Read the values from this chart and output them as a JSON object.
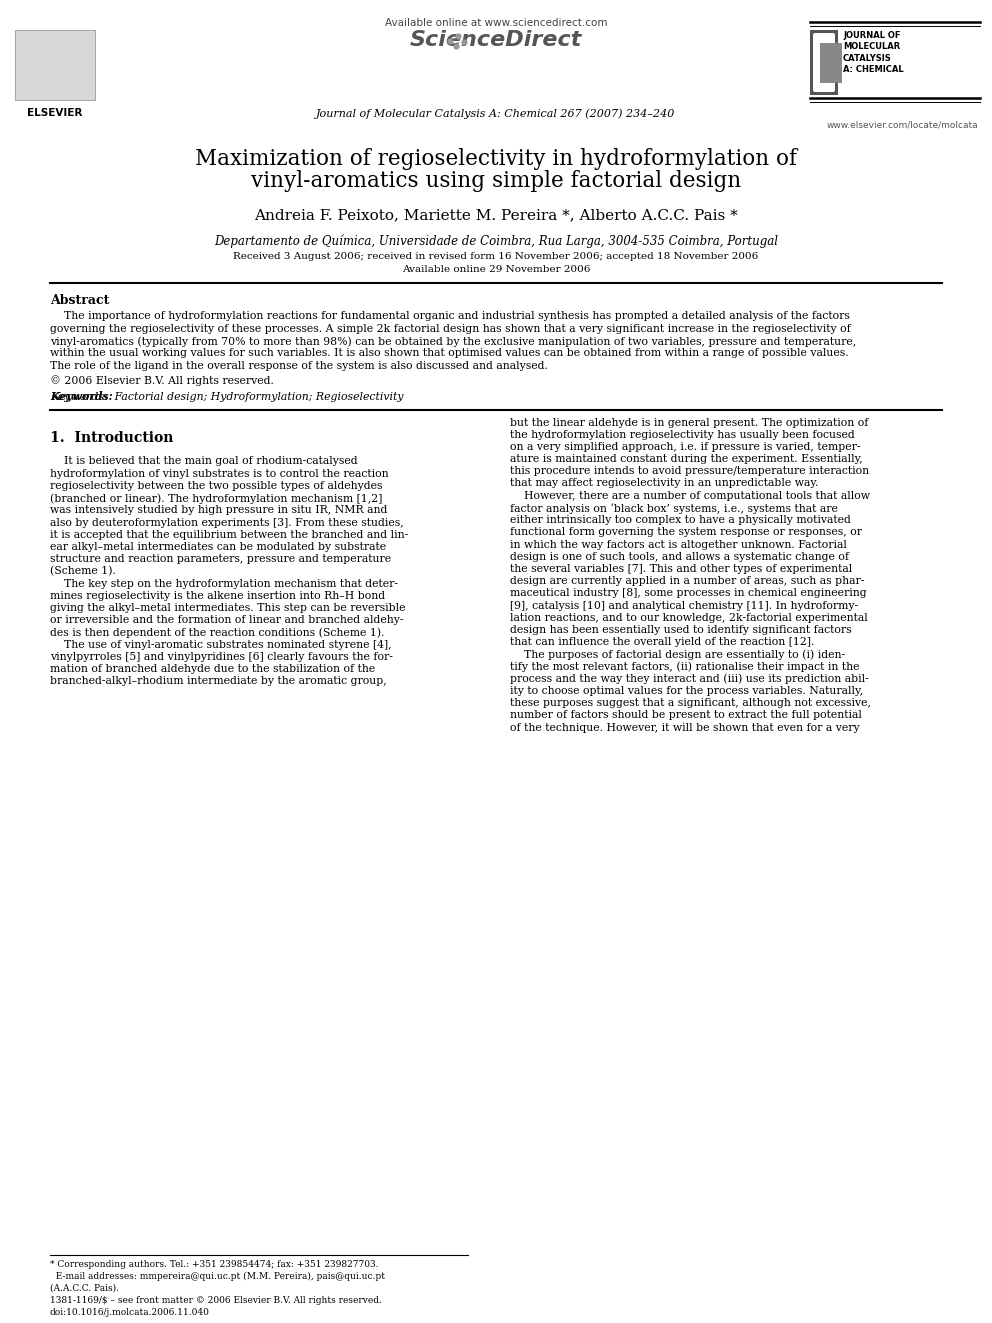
{
  "title_line1": "Maximization of regioselectivity in hydroformylation of",
  "title_line2": "vinyl-aromatics using simple factorial design",
  "authors_plain": "Andreia F. Peixoto, Mariette M. Pereira *, Alberto A.C.C. Pais *",
  "affiliation": "Departamento de Química, Universidade de Coimbra, Rua Larga, 3004-535 Coimbra, Portugal",
  "received": "Received 3 August 2006; received in revised form 16 November 2006; accepted 18 November 2006",
  "available_online_date": "Available online 29 November 2006",
  "journal_header": "Journal of Molecular Catalysis A: Chemical 267 (2007) 234–240",
  "available_online": "Available online at www.sciencedirect.com",
  "sciencedirect": "ScienceDirect",
  "website": "www.elsevier.com/locate/molcata",
  "elsevier_text": "ELSEVIER",
  "jmc_text": "JOURNAL OF\nMOLECULAR\nCATALYSIS\nA: CHEMICAL",
  "abstract_title": "Abstract",
  "abstract_body": "    The importance of hydroformylation reactions for fundamental organic and industrial synthesis has prompted a detailed analysis of the factors governing the regioselectivity of these processes. A simple 2k factorial design has shown that a very significant increase in the regioselectivity of vinyl-aromatics (typically from 70% to more than 98%) can be obtained by the exclusive manipulation of two variables, pressure and temperature, within the usual working values for such variables. It is also shown that optimised values can be obtained from within a range of possible values. The role of the ligand in the overall response of the system is also discussed and analysed.",
  "copyright": "© 2006 Elsevier B.V. All rights reserved.",
  "keywords_label": "Keywords:",
  "keywords_body": "  Factorial design; Hydroformylation; Regioselectivity",
  "section1": "1.  Introduction",
  "left_col_lines": [
    "    It is believed that the main goal of rhodium-catalysed",
    "hydroformylation of vinyl substrates is to control the reaction",
    "regioselectivity between the two possible types of aldehydes",
    "(branched or linear). The hydroformylation mechanism [1,2]",
    "was intensively studied by high pressure in situ IR, NMR and",
    "also by deuteroformylation experiments [3]. From these studies,",
    "it is accepted that the equilibrium between the branched and lin-",
    "ear alkyl–metal intermediates can be modulated by substrate",
    "structure and reaction parameters, pressure and temperature",
    "(Scheme 1).",
    "    The key step on the hydroformylation mechanism that deter-",
    "mines regioselectivity is the alkene insertion into Rh–H bond",
    "giving the alkyl–metal intermediates. This step can be reversible",
    "or irreversible and the formation of linear and branched aldehy-",
    "des is then dependent of the reaction conditions (Scheme 1).",
    "    The use of vinyl-aromatic substrates nominated styrene [4],",
    "vinylpyrroles [5] and vinylpyridines [6] clearly favours the for-",
    "mation of branched aldehyde due to the stabilization of the",
    "branched-alkyl–rhodium intermediate by the aromatic group,"
  ],
  "right_col_lines": [
    "but the linear aldehyde is in general present. The optimization of",
    "the hydroformylation regioselectivity has usually been focused",
    "on a very simplified approach, i.e. if pressure is varied, temper-",
    "ature is maintained constant during the experiment. Essentially,",
    "this procedure intends to avoid pressure/temperature interaction",
    "that may affect regioselectivity in an unpredictable way.",
    "    However, there are a number of computational tools that allow",
    "factor analysis on ‘black box’ systems, i.e., systems that are",
    "either intrinsically too complex to have a physically motivated",
    "functional form governing the system response or responses, or",
    "in which the way factors act is altogether unknown. Factorial",
    "design is one of such tools, and allows a systematic change of",
    "the several variables [7]. This and other types of experimental",
    "design are currently applied in a number of areas, such as phar-",
    "maceutical industry [8], some processes in chemical engineering",
    "[9], catalysis [10] and analytical chemistry [11]. In hydroformy-",
    "lation reactions, and to our knowledge, 2k-factorial experimental",
    "design has been essentially used to identify significant factors",
    "that can influence the overall yield of the reaction [12].",
    "    The purposes of factorial design are essentially to (i) iden-",
    "tify the most relevant factors, (ii) rationalise their impact in the",
    "process and the way they interact and (iii) use its prediction abil-",
    "ity to choose optimal values for the process variables. Naturally,",
    "these purposes suggest that a significant, although not excessive,",
    "number of factors should be present to extract the full potential",
    "of the technique. However, it will be shown that even for a very"
  ],
  "footer_line1": "* Corresponding authors. Tel.: +351 239854474; fax: +351 239827703.",
  "footer_line2": "  E-mail addresses: mmpereira@qui.uc.pt (M.M. Pereira), pais@qui.uc.pt",
  "footer_line3": "(A.A.C.C. Pais).",
  "footer_right1": "1381-1169/$ – see front matter © 2006 Elsevier B.V. All rights reserved.",
  "footer_right2": "doi:10.1016/j.molcata.2006.11.040",
  "bg_color": "#ffffff",
  "text_color": "#000000",
  "blue_color": "#0000cc",
  "link_color": "#0000cc",
  "gray_color": "#666666"
}
